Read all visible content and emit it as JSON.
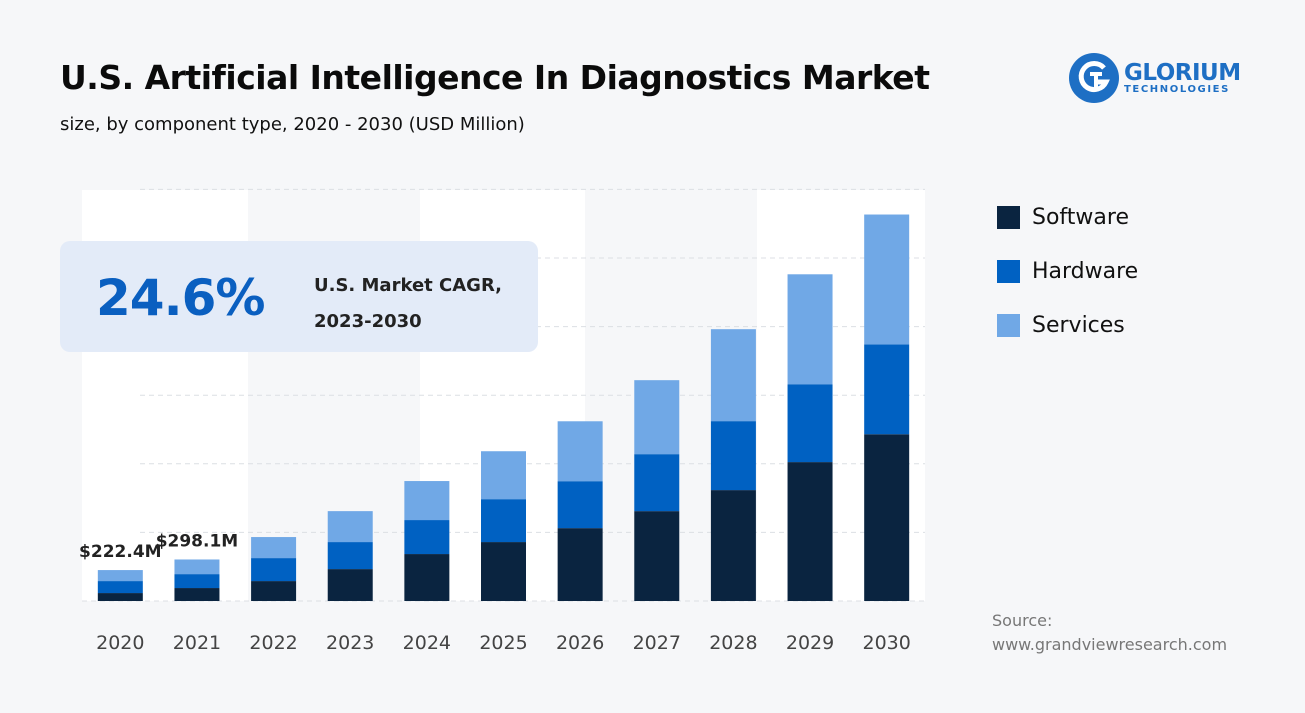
{
  "header": {
    "title": "U.S. Artificial Intelligence In Diagnostics Market",
    "subtitle": "size, by component type, 2020 - 2030 (USD Million)"
  },
  "logo": {
    "name": "GLORIUM",
    "tagline": "TECHNOLOGIES"
  },
  "cagr": {
    "value": "24.6%",
    "label": "U.S. Market CAGR, 2023-2030"
  },
  "source": {
    "label": "Source:",
    "url": "www.grandviewresearch.com"
  },
  "colors": {
    "Software": "#0a2440",
    "Hardware": "#0061c2",
    "Services": "#70a8e6",
    "cagr": "#0a5fc0"
  },
  "chart_data": {
    "type": "bar",
    "stacked": true,
    "title": "U.S. Artificial Intelligence In Diagnostics Market",
    "subtitle": "size, by component type, 2020 - 2030 (USD Million)",
    "categories": [
      "2020",
      "2021",
      "2022",
      "2023",
      "2024",
      "2025",
      "2026",
      "2027",
      "2028",
      "2029",
      "2030"
    ],
    "series": [
      {
        "name": "Software",
        "values": [
          57,
          93,
          143,
          229,
          337,
          423,
          523,
          645,
          796,
          997,
          1197
        ]
      },
      {
        "name": "Hardware",
        "values": [
          86,
          100,
          165,
          194,
          244,
          308,
          337,
          409,
          495,
          559,
          645
        ]
      },
      {
        "name": "Services",
        "values": [
          79,
          105,
          151,
          222,
          280,
          344,
          430,
          531,
          660,
          789,
          932
        ]
      }
    ],
    "annotations": [
      {
        "category": "2020",
        "text": "$222.4M"
      },
      {
        "category": "2021",
        "text": "$298.1M"
      }
    ],
    "ylim": [
      0,
      2950
    ],
    "grid": true,
    "legend": "right",
    "xlabel": "",
    "ylabel": ""
  }
}
